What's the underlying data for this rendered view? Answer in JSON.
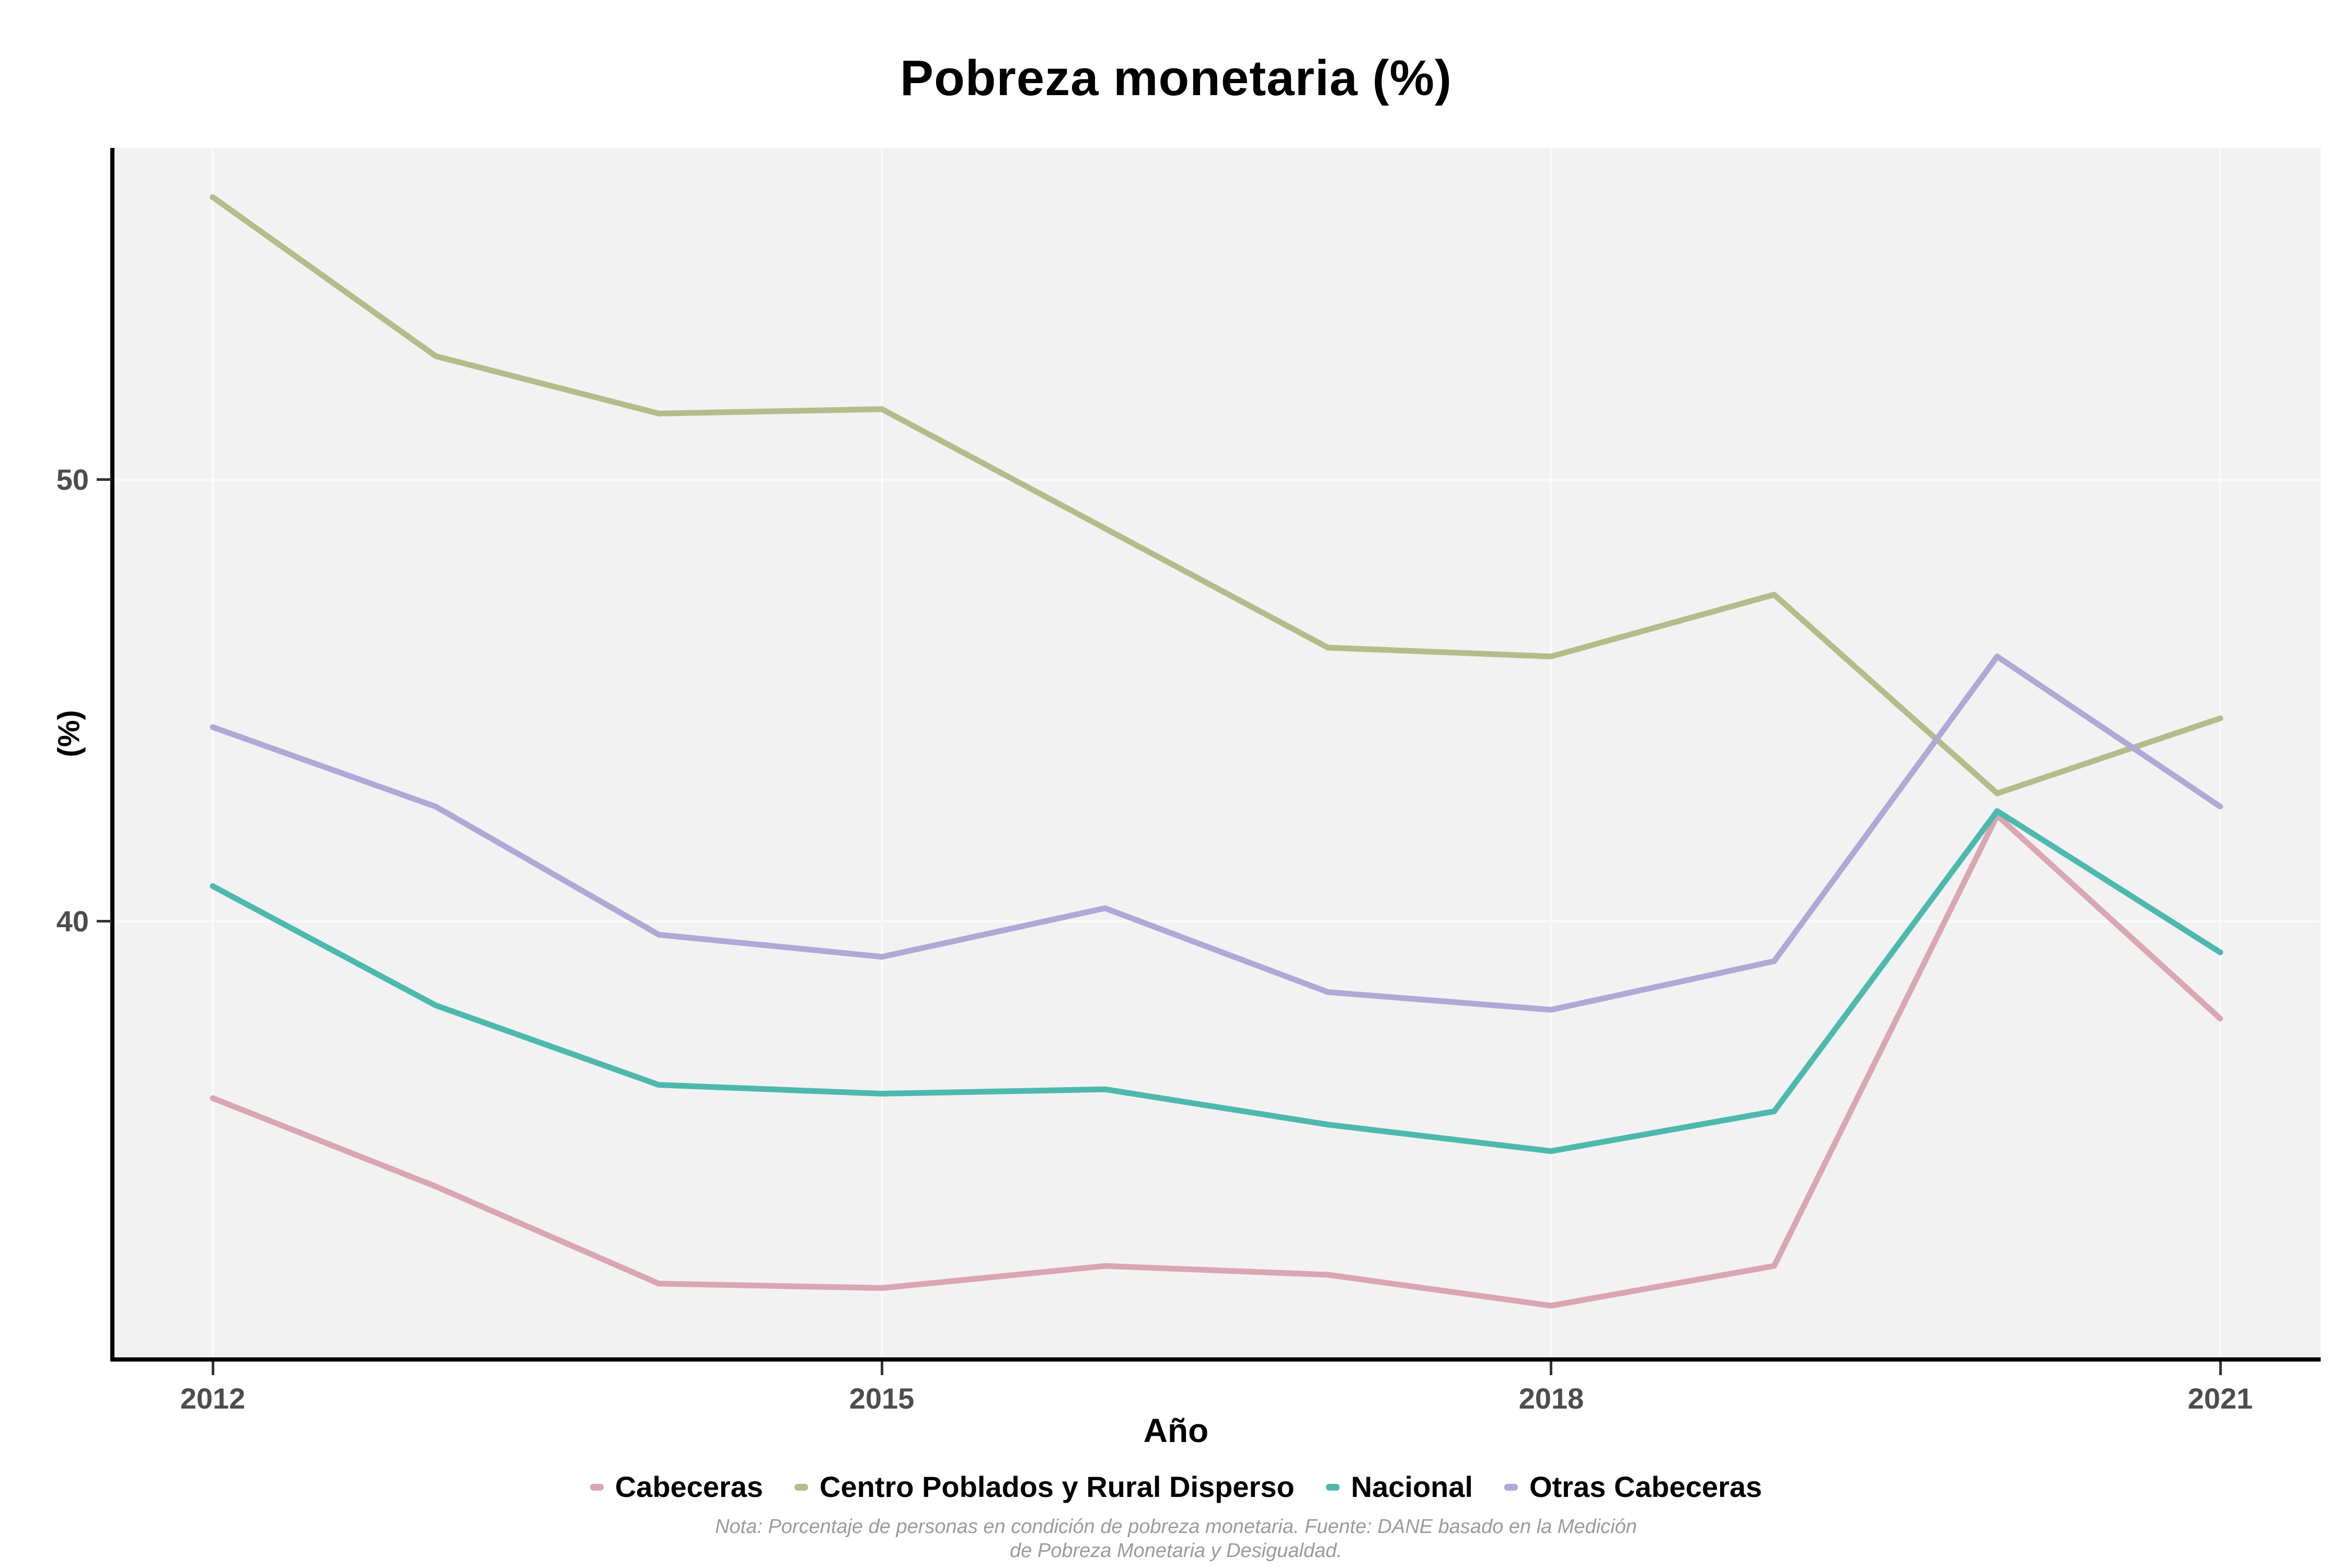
{
  "title": "Pobreza monetaria (%)",
  "axes": {
    "x_label": "Año",
    "y_label": "(%)",
    "x_ticks": [
      "2012",
      "2015",
      "2018",
      "2021"
    ],
    "y_ticks": [
      "50",
      "40"
    ]
  },
  "legend": [
    {
      "label": "Cabeceras",
      "color": "#d9a6b2"
    },
    {
      "label": "Centro Poblados y Rural Disperso",
      "color": "#b3bd8a"
    },
    {
      "label": "Nacional",
      "color": "#4db9ad"
    },
    {
      "label": "Otras Cabeceras",
      "color": "#b1a8d6"
    }
  ],
  "notes": {
    "line1": "Nota: Porcentaje de personas en condición de pobreza monetaria. Fuente: DANE basado en la Medición",
    "line2": "de Pobreza Monetaria y Desigualdad."
  },
  "chart_data": {
    "type": "line",
    "title": "Pobreza monetaria (%)",
    "xlabel": "Año",
    "ylabel": "(%)",
    "x": [
      2012,
      2013,
      2014,
      2015,
      2016,
      2017,
      2018,
      2019,
      2020,
      2021
    ],
    "series": [
      {
        "name": "Cabeceras",
        "color": "#d9a6b2",
        "values": [
          36.0,
          34.0,
          31.8,
          31.7,
          32.2,
          32.0,
          31.3,
          32.2,
          42.4,
          37.8
        ]
      },
      {
        "name": "Centro Poblados y Rural Disperso",
        "color": "#b3bd8a",
        "values": [
          56.4,
          52.8,
          51.5,
          51.6,
          48.9,
          46.2,
          46.0,
          47.4,
          42.9,
          44.6
        ]
      },
      {
        "name": "Nacional",
        "color": "#4db9ad",
        "values": [
          40.8,
          38.1,
          36.3,
          36.1,
          36.2,
          35.4,
          34.8,
          35.7,
          42.5,
          39.3
        ]
      },
      {
        "name": "Otras Cabeceras",
        "color": "#b1a8d6",
        "values": [
          44.4,
          42.6,
          39.7,
          39.2,
          40.3,
          38.4,
          38.0,
          39.1,
          46.0,
          42.6
        ]
      }
    ],
    "xlim": [
      2011.55,
      2021.45
    ],
    "ylim": [
      30.1,
      57.5
    ],
    "x_gridlines": [
      2012,
      2015,
      2018,
      2021
    ],
    "y_gridlines": [
      40,
      50
    ],
    "grid": "on",
    "panel_background": "#f2f2f2",
    "gridline_color": "#fafafa",
    "legend_position": "bottom"
  }
}
